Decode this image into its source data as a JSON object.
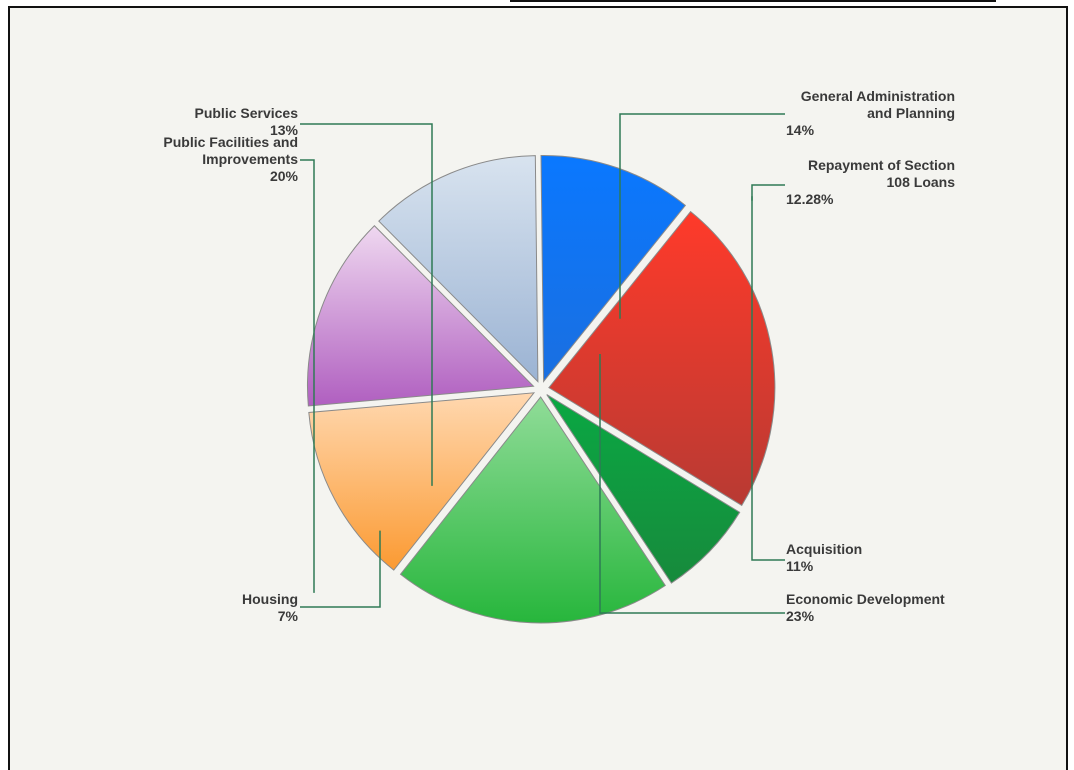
{
  "chart_data": {
    "type": "pie",
    "title": "",
    "exploded": true,
    "slices": [
      {
        "label": "General Administration and Planning",
        "label_lines": [
          "General Administration",
          "and Planning"
        ],
        "pct_label": "14%",
        "value": 14,
        "color": "#b05fc0",
        "light": "#efd8f0"
      },
      {
        "label": "Repayment of Section 108 Loans",
        "label_lines": [
          "Repayment of Section",
          "108 Loans"
        ],
        "pct_label": "12.28%",
        "value": 12.28,
        "color": "#9bb3d3",
        "light": "#d8e3ef"
      },
      {
        "label": "Acquisition",
        "label_lines": [
          "Acquisition"
        ],
        "pct_label": "11%",
        "value": 11,
        "color": "#1a6fe0",
        "light": "#0a78ff"
      },
      {
        "label": "Economic Development",
        "label_lines": [
          "Economic Development"
        ],
        "pct_label": "23%",
        "value": 23,
        "color": "#b83a33",
        "light": "#ff3a2a"
      },
      {
        "label": "Housing",
        "label_lines": [
          "Housing"
        ],
        "pct_label": "7%",
        "value": 7,
        "color": "#178a3c",
        "light": "#0aa843"
      },
      {
        "label": "Public Facilities and Improvements",
        "label_lines": [
          "Public Facilities and",
          "Improvements"
        ],
        "pct_label": "20%",
        "value": 20,
        "color": "#27b63c",
        "light": "#90dc98"
      },
      {
        "label": "Public Services",
        "label_lines": [
          "Public Services"
        ],
        "pct_label": "13%",
        "value": 13,
        "color": "#fb9a32",
        "light": "#ffd8b0"
      }
    ],
    "leader_color": "#2e7a55"
  }
}
